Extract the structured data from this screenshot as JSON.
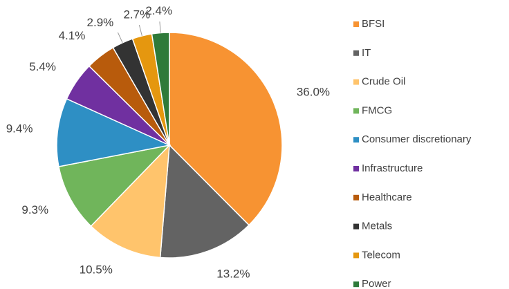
{
  "chart_data": {
    "type": "pie",
    "categories": [
      "BFSI",
      "IT",
      "Crude Oil",
      "FMCG",
      "Consumer discretionary",
      "Infrastructure",
      "Healthcare",
      "Metals",
      "Telecom",
      "Power"
    ],
    "values": [
      36.0,
      13.2,
      10.5,
      9.3,
      9.4,
      5.4,
      4.1,
      2.9,
      2.7,
      2.4
    ],
    "value_labels": [
      "36.0%",
      "13.2%",
      "10.5%",
      "9.3%",
      "9.4%",
      "5.4%",
      "4.1%",
      "2.9%",
      "2.7%",
      "2.4%"
    ],
    "colors": [
      "#f79332",
      "#636363",
      "#ffc46c",
      "#70b55b",
      "#2e8fc4",
      "#7030a0",
      "#b85b0c",
      "#333333",
      "#e5970f",
      "#2f7a3a"
    ],
    "legend": "right"
  }
}
